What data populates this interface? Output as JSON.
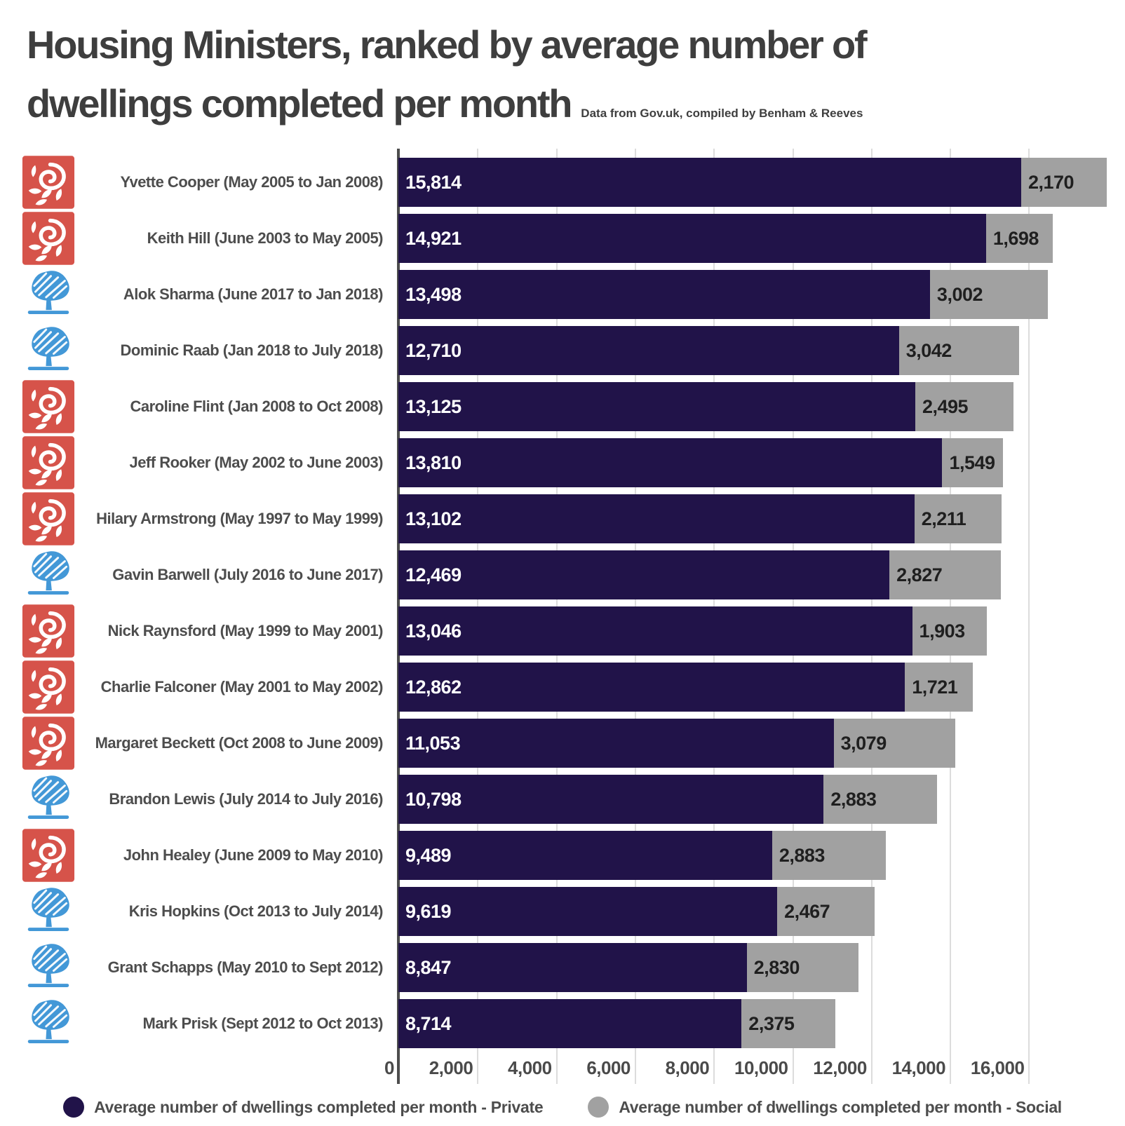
{
  "title": {
    "line1": "Housing Ministers, ranked by average number of",
    "line2": "dwellings completed per month",
    "subtitle": "Data from Gov.uk, compiled by Benham & Reeves"
  },
  "colors": {
    "private_bar": "#211349",
    "social_bar": "#a1a1a1",
    "labour_red": "#d6534a",
    "conservative_blue": "#4398d7",
    "title_text": "#3e3e3e",
    "label_text": "#4d4d4d",
    "gridline": "#dcdcdc",
    "axis_line": "#4d4d4d"
  },
  "chart_data": {
    "type": "bar",
    "orientation": "horizontal",
    "stacked": true,
    "title": "Housing Ministers, ranked by average number of dwellings completed per month",
    "xlabel": "",
    "ylabel": "",
    "xlim": [
      0,
      18450
    ],
    "grid": true,
    "legend_position": "bottom",
    "x_ticks": [
      {
        "value": 0,
        "label": "0"
      },
      {
        "value": 2000,
        "label": "2,000"
      },
      {
        "value": 4000,
        "label": "4,000"
      },
      {
        "value": 6000,
        "label": "6,000"
      },
      {
        "value": 8000,
        "label": "8,000"
      },
      {
        "value": 10000,
        "label": "10,000"
      },
      {
        "value": 12000,
        "label": "12,000"
      },
      {
        "value": 14000,
        "label": "14,000"
      },
      {
        "value": 16000,
        "label": "16,000"
      }
    ],
    "series": [
      {
        "name": "Average number of dwellings completed per month - Private",
        "color": "#211349"
      },
      {
        "name": "Average number of dwellings completed per month - Social",
        "color": "#a1a1a1"
      }
    ],
    "rows": [
      {
        "label": "Yvette Cooper (May 2005 to Jan 2008)",
        "party": "labour",
        "private": 15814,
        "social": 2170,
        "private_label": "15,814",
        "social_label": "2,170"
      },
      {
        "label": "Keith Hill (June 2003 to May 2005)",
        "party": "labour",
        "private": 14921,
        "social": 1698,
        "private_label": "14,921",
        "social_label": "1,698"
      },
      {
        "label": "Alok Sharma (June 2017 to Jan 2018)",
        "party": "conservative",
        "private": 13498,
        "social": 3002,
        "private_label": "13,498",
        "social_label": "3,002"
      },
      {
        "label": "Dominic Raab (Jan 2018 to July 2018)",
        "party": "conservative",
        "private": 12710,
        "social": 3042,
        "private_label": "12,710",
        "social_label": "3,042"
      },
      {
        "label": "Caroline Flint (Jan 2008 to Oct 2008)",
        "party": "labour",
        "private": 13125,
        "social": 2495,
        "private_label": "13,125",
        "social_label": "2,495"
      },
      {
        "label": "Jeff Rooker (May 2002 to June 2003)",
        "party": "labour",
        "private": 13810,
        "social": 1549,
        "private_label": "13,810",
        "social_label": "1,549"
      },
      {
        "label": "Hilary Armstrong (May 1997 to May 1999)",
        "party": "labour",
        "private": 13102,
        "social": 2211,
        "private_label": "13,102",
        "social_label": "2,211"
      },
      {
        "label": "Gavin Barwell (July 2016 to June 2017)",
        "party": "conservative",
        "private": 12469,
        "social": 2827,
        "private_label": "12,469",
        "social_label": "2,827"
      },
      {
        "label": "Nick Raynsford (May 1999 to May 2001)",
        "party": "labour",
        "private": 13046,
        "social": 1903,
        "private_label": "13,046",
        "social_label": "1,903"
      },
      {
        "label": "Charlie Falconer (May 2001 to May 2002)",
        "party": "labour",
        "private": 12862,
        "social": 1721,
        "private_label": "12,862",
        "social_label": "1,721"
      },
      {
        "label": "Margaret Beckett (Oct 2008 to June 2009)",
        "party": "labour",
        "private": 11053,
        "social": 3079,
        "private_label": "11,053",
        "social_label": "3,079"
      },
      {
        "label": "Brandon Lewis (July 2014 to July 2016)",
        "party": "conservative",
        "private": 10798,
        "social": 2883,
        "private_label": "10,798",
        "social_label": "2,883"
      },
      {
        "label": "John Healey (June 2009 to May 2010)",
        "party": "labour",
        "private": 9489,
        "social": 2883,
        "private_label": "9,489",
        "social_label": "2,883"
      },
      {
        "label": "Kris Hopkins (Oct 2013 to July 2014)",
        "party": "conservative",
        "private": 9619,
        "social": 2467,
        "private_label": "9,619",
        "social_label": "2,467"
      },
      {
        "label": "Grant Schapps (May 2010 to Sept 2012)",
        "party": "conservative",
        "private": 8847,
        "social": 2830,
        "private_label": "8,847",
        "social_label": "2,830"
      },
      {
        "label": "Mark Prisk (Sept 2012 to Oct 2013)",
        "party": "conservative",
        "private": 8714,
        "social": 2375,
        "private_label": "8,714",
        "social_label": "2,375"
      }
    ],
    "legend": [
      {
        "label": "Average number of dwellings completed per month - Private",
        "color": "#211349"
      },
      {
        "label": "Average number of dwellings completed per month - Social",
        "color": "#a1a1a1"
      }
    ]
  }
}
